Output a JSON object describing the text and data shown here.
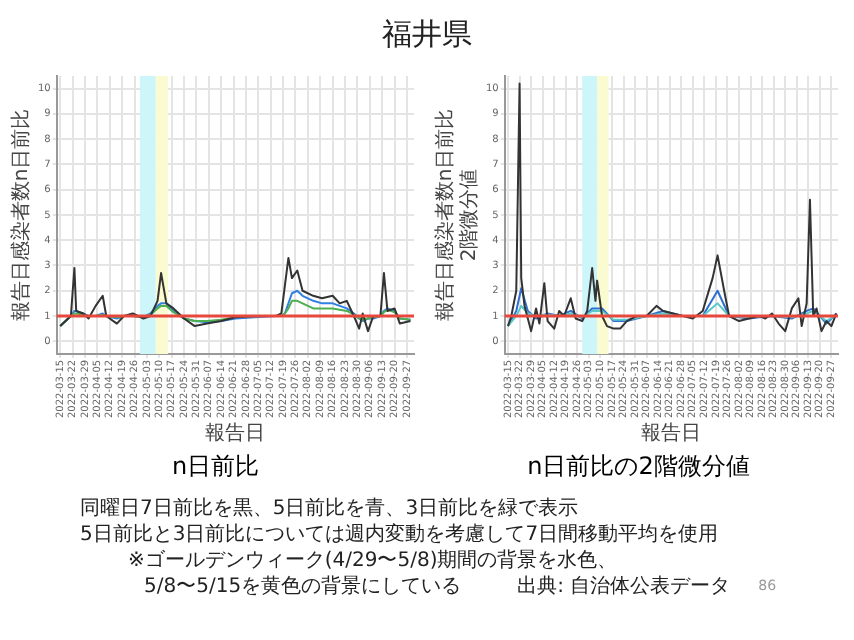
{
  "chart_data": [
    {
      "type": "line",
      "title": "福井県",
      "subtitle": "n日前比",
      "xlabel": "報告日",
      "ylabel": "報告日感染者数n日前比",
      "x": [
        "2022-03-15",
        "2022-03-18",
        "2022-03-21",
        "2022-03-23",
        "2022-03-24",
        "2022-03-28",
        "2022-03-31",
        "2022-04-04",
        "2022-04-08",
        "2022-04-10",
        "2022-04-16",
        "2022-04-20",
        "2022-04-25",
        "2022-05-01",
        "2022-05-05",
        "2022-05-09",
        "2022-05-11",
        "2022-05-14",
        "2022-05-18",
        "2022-05-24",
        "2022-05-30",
        "2022-06-06",
        "2022-06-14",
        "2022-06-22",
        "2022-07-03",
        "2022-07-15",
        "2022-07-18",
        "2022-07-20",
        "2022-07-22",
        "2022-07-24",
        "2022-07-27",
        "2022-07-30",
        "2022-08-05",
        "2022-08-10",
        "2022-08-16",
        "2022-08-20",
        "2022-08-24",
        "2022-08-28",
        "2022-08-31",
        "2022-09-02",
        "2022-09-05",
        "2022-09-08",
        "2022-09-12",
        "2022-09-14",
        "2022-09-16",
        "2022-09-20",
        "2022-09-23",
        "2022-09-29"
      ],
      "series": [
        {
          "color": "#333333",
          "values": [
            0.6,
            0.8,
            1.0,
            2.9,
            1.2,
            1.1,
            0.9,
            1.4,
            1.8,
            1.0,
            0.7,
            1.0,
            1.1,
            0.9,
            1.0,
            1.6,
            2.7,
            1.5,
            1.3,
            0.9,
            0.6,
            0.7,
            0.8,
            0.95,
            1.0,
            1.0,
            1.1,
            2.2,
            3.3,
            2.5,
            2.8,
            2.0,
            1.8,
            1.7,
            1.8,
            1.5,
            1.6,
            1.0,
            0.5,
            1.1,
            0.4,
            1.0,
            1.0,
            2.7,
            1.2,
            1.3,
            0.7,
            0.8
          ]
        },
        {
          "color": "#4caf50",
          "values": [
            0.6,
            0.8,
            1.0,
            1.1,
            1.1,
            1.05,
            1.0,
            1.0,
            1.05,
            1.0,
            0.95,
            1.0,
            1.0,
            0.95,
            1.05,
            1.3,
            1.4,
            1.4,
            1.15,
            0.9,
            0.8,
            0.8,
            0.85,
            0.95,
            1.0,
            1.0,
            1.0,
            1.1,
            1.3,
            1.6,
            1.6,
            1.5,
            1.3,
            1.3,
            1.3,
            1.25,
            1.2,
            1.05,
            0.9,
            0.85,
            0.9,
            0.95,
            1.0,
            1.15,
            1.25,
            1.15,
            0.9,
            0.85
          ]
        },
        {
          "color": "#2f80e0",
          "values": [
            0.6,
            0.8,
            1.0,
            1.2,
            1.2,
            1.1,
            1.0,
            1.0,
            1.1,
            1.0,
            0.9,
            1.0,
            1.0,
            0.95,
            1.1,
            1.4,
            1.5,
            1.5,
            1.2,
            0.9,
            0.8,
            0.75,
            0.8,
            0.9,
            0.95,
            1.0,
            1.0,
            1.1,
            1.5,
            1.9,
            2.0,
            1.8,
            1.6,
            1.5,
            1.5,
            1.4,
            1.3,
            1.1,
            0.9,
            0.8,
            0.9,
            0.9,
            1.0,
            1.2,
            1.3,
            1.2,
            0.9,
            0.85
          ]
        }
      ],
      "xlim": [
        "2022-03-13",
        "2022-10-01"
      ],
      "xticks": [
        "2022-03-15",
        "2022-03-22",
        "2022-03-29",
        "2022-04-05",
        "2022-04-12",
        "2022-04-19",
        "2022-04-26",
        "2022-05-03",
        "2022-05-10",
        "2022-05-17",
        "2022-05-24",
        "2022-05-31",
        "2022-06-07",
        "2022-06-14",
        "2022-06-21",
        "2022-06-28",
        "2022-07-05",
        "2022-07-12",
        "2022-07-19",
        "2022-07-26",
        "2022-08-02",
        "2022-08-09",
        "2022-08-16",
        "2022-08-23",
        "2022-08-30",
        "2022-09-06",
        "2022-09-13",
        "2022-09-20",
        "2022-09-27"
      ],
      "ylim": [
        -0.5,
        10.5
      ],
      "yticks": [
        0,
        1,
        2,
        3,
        4,
        5,
        6,
        7,
        8,
        9,
        10
      ],
      "grid": true,
      "legend": false,
      "bands": [
        {
          "axis": "x",
          "from": "2022-04-29",
          "to": "2022-05-08",
          "color": "#ccf6fa"
        },
        {
          "axis": "x",
          "from": "2022-05-08",
          "to": "2022-05-15",
          "color": "#fbfbd2"
        }
      ],
      "ref_lines": [
        {
          "axis": "y",
          "value": 1,
          "color": "#e8483c"
        }
      ],
      "annotations": [
        "同曜日7日前比を黒、5日前比を青、3日前比を緑で表示",
        "5日前比と3日前比については週内変動を考慮して7日間移動平均を使用",
        "※ゴールデンウィーク(4/29〜5/8)期間の背景を水色、",
        "5/8〜5/15を黄色の背景にしている",
        "出典: 自治体公表データ",
        "86"
      ]
    },
    {
      "type": "line",
      "title": "n日前比の2階微分値",
      "xlabel": "報告日",
      "ylabel": "報告日感染者数n日前比\n2階微分値",
      "series": [
        {
          "color": "#333333",
          "x": [
            "2022-03-15",
            "2022-03-17",
            "2022-03-20",
            "2022-03-22",
            "2022-03-23",
            "2022-03-25",
            "2022-03-27",
            "2022-03-29",
            "2022-04-01",
            "2022-04-03",
            "2022-04-06",
            "2022-04-08",
            "2022-04-12",
            "2022-04-15",
            "2022-04-18",
            "2022-04-22",
            "2022-04-25",
            "2022-04-29",
            "2022-05-02",
            "2022-05-05",
            "2022-05-07",
            "2022-05-08",
            "2022-05-11",
            "2022-05-14",
            "2022-05-18",
            "2022-05-22",
            "2022-05-26",
            "2022-06-01",
            "2022-06-07",
            "2022-06-13",
            "2022-06-17",
            "2022-06-23",
            "2022-06-29",
            "2022-07-05",
            "2022-07-11",
            "2022-07-17",
            "2022-07-20",
            "2022-07-24",
            "2022-07-27",
            "2022-08-02",
            "2022-08-08",
            "2022-08-14",
            "2022-08-18",
            "2022-08-22",
            "2022-08-26",
            "2022-08-30",
            "2022-09-03",
            "2022-09-07",
            "2022-09-09",
            "2022-09-12",
            "2022-09-14",
            "2022-09-16",
            "2022-09-18",
            "2022-09-21",
            "2022-09-24",
            "2022-09-27",
            "2022-09-30"
          ],
          "values": [
            0.6,
            1.0,
            2.0,
            10.2,
            2.5,
            1.4,
            0.9,
            0.4,
            1.3,
            0.7,
            2.3,
            0.8,
            0.5,
            1.2,
            1.0,
            1.7,
            0.9,
            0.8,
            1.2,
            2.9,
            1.6,
            2.4,
            1.0,
            0.6,
            0.5,
            0.5,
            0.8,
            1.0,
            1.0,
            1.4,
            1.2,
            1.1,
            1.0,
            0.9,
            1.2,
            2.5,
            3.4,
            2.0,
            1.0,
            0.8,
            0.9,
            1.0,
            0.9,
            1.1,
            0.7,
            0.4,
            1.3,
            1.7,
            0.6,
            1.5,
            5.6,
            1.0,
            1.3,
            0.4,
            0.8,
            0.6,
            1.1
          ]
        },
        {
          "color": "#5cc8c8",
          "x": [
            "2022-03-15",
            "2022-03-20",
            "2022-03-23",
            "2022-03-27",
            "2022-04-01",
            "2022-04-08",
            "2022-04-15",
            "2022-04-22",
            "2022-04-29",
            "2022-05-05",
            "2022-05-11",
            "2022-05-18",
            "2022-05-26",
            "2022-06-07",
            "2022-06-17",
            "2022-06-29",
            "2022-07-11",
            "2022-07-20",
            "2022-07-27",
            "2022-08-08",
            "2022-08-22",
            "2022-09-03",
            "2022-09-12",
            "2022-09-16",
            "2022-09-24",
            "2022-09-30"
          ],
          "values": [
            0.6,
            1.0,
            1.4,
            1.1,
            1.0,
            1.05,
            1.0,
            1.1,
            0.95,
            1.2,
            1.2,
            0.85,
            0.85,
            1.0,
            1.1,
            1.0,
            1.0,
            1.5,
            1.0,
            0.95,
            1.0,
            0.95,
            1.1,
            1.2,
            0.8,
            1.05
          ]
        },
        {
          "color": "#2f6fd0",
          "x": [
            "2022-03-15",
            "2022-03-20",
            "2022-03-23",
            "2022-03-27",
            "2022-04-01",
            "2022-04-08",
            "2022-04-15",
            "2022-04-22",
            "2022-04-29",
            "2022-05-05",
            "2022-05-11",
            "2022-05-18",
            "2022-05-26",
            "2022-06-07",
            "2022-06-17",
            "2022-06-29",
            "2022-07-11",
            "2022-07-20",
            "2022-07-27",
            "2022-08-08",
            "2022-08-22",
            "2022-09-03",
            "2022-09-12",
            "2022-09-16",
            "2022-09-24",
            "2022-09-30"
          ],
          "values": [
            0.6,
            1.2,
            2.1,
            1.2,
            0.9,
            1.1,
            1.0,
            1.2,
            0.9,
            1.3,
            1.3,
            0.8,
            0.8,
            1.0,
            1.2,
            1.0,
            1.0,
            2.0,
            1.0,
            0.9,
            1.0,
            0.9,
            1.2,
            1.3,
            0.7,
            1.1
          ]
        }
      ],
      "xlim": [
        "2022-03-13",
        "2022-10-01"
      ],
      "xticks": [
        "2022-03-15",
        "2022-03-22",
        "2022-03-29",
        "2022-04-05",
        "2022-04-12",
        "2022-04-19",
        "2022-04-26",
        "2022-05-03",
        "2022-05-10",
        "2022-05-17",
        "2022-05-24",
        "2022-05-31",
        "2022-06-07",
        "2022-06-14",
        "2022-06-21",
        "2022-06-28",
        "2022-07-05",
        "2022-07-12",
        "2022-07-19",
        "2022-07-26",
        "2022-08-02",
        "2022-08-09",
        "2022-08-16",
        "2022-08-23",
        "2022-08-30",
        "2022-09-06",
        "2022-09-13",
        "2022-09-20",
        "2022-09-27"
      ],
      "ylim": [
        -0.5,
        10.5
      ],
      "yticks": [
        0,
        1,
        2,
        3,
        4,
        5,
        6,
        7,
        8,
        9,
        10
      ],
      "grid": true,
      "legend": false,
      "bands": [
        {
          "axis": "x",
          "from": "2022-04-29",
          "to": "2022-05-08",
          "color": "#ccf6fa"
        },
        {
          "axis": "x",
          "from": "2022-05-08",
          "to": "2022-05-15",
          "color": "#fbfbd2"
        }
      ],
      "ref_lines": [
        {
          "axis": "y",
          "value": 1,
          "color": "#e8483c"
        }
      ]
    }
  ]
}
